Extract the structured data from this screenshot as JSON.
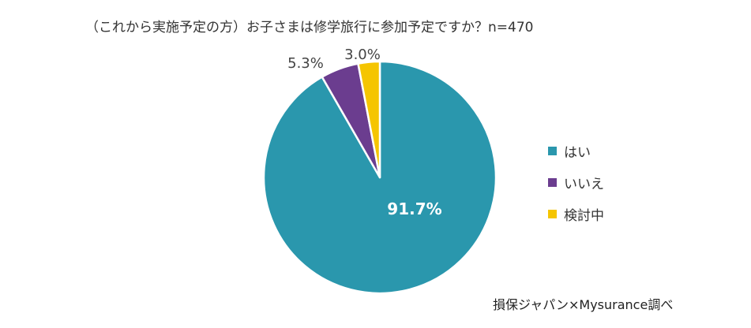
{
  "chart_data": {
    "type": "pie",
    "title": "（これから実施予定の方）お子さまは修学旅行に参加予定ですか？n=470",
    "categories": [
      "はい",
      "いいえ",
      "検討中"
    ],
    "values": [
      91.7,
      5.3,
      3.0
    ],
    "labels": [
      "91.7%",
      "5.3%",
      "3.0%"
    ],
    "colors": [
      "#2a97ad",
      "#6b3d8f",
      "#f5c500"
    ],
    "start_angle_deg": 0,
    "direction": "clockwise",
    "legend_position": "right"
  },
  "source_note": "損保ジャパン×Mysurance調べ"
}
